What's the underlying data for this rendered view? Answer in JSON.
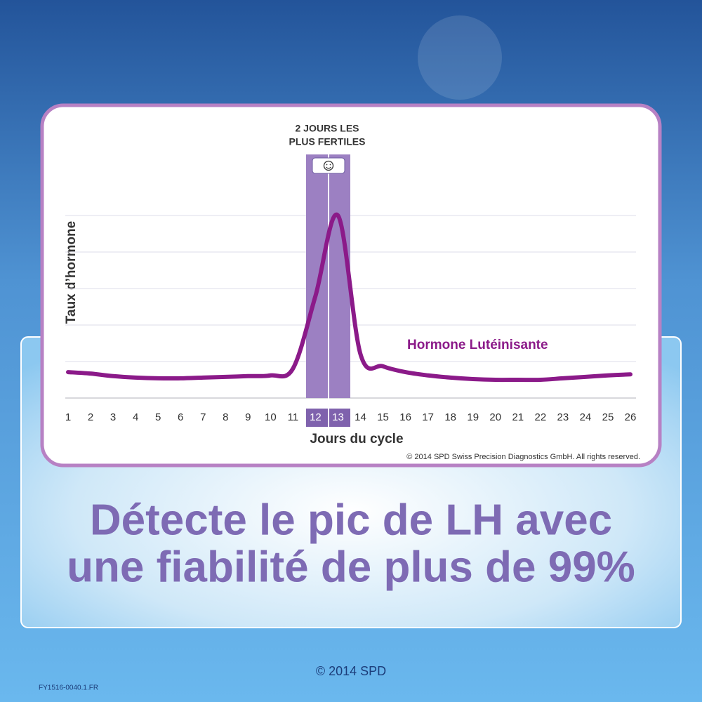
{
  "chart_data": {
    "type": "line",
    "annotation": [
      "2 JOURS LES",
      "PLUS FERTILES"
    ],
    "y_label": "Taux d’hormone",
    "x_label": "Jours du cycle",
    "copyright": "© 2014 SPD Swiss Precision Diagnostics GmbH. All rights reserved.",
    "categories": [
      "1",
      "2",
      "3",
      "4",
      "5",
      "6",
      "7",
      "8",
      "9",
      "10",
      "11",
      "12",
      "13",
      "14",
      "15",
      "16",
      "17",
      "18",
      "19",
      "20",
      "21",
      "22",
      "23",
      "24",
      "25",
      "26"
    ],
    "series": [
      {
        "name": "Hormone Lutéinisante",
        "color": "#8b1a89",
        "values": [
          0.71,
          0.67,
          0.6,
          0.56,
          0.54,
          0.54,
          0.56,
          0.58,
          0.6,
          0.62,
          0.81,
          2.8,
          5.0,
          1.2,
          0.87,
          0.71,
          0.62,
          0.56,
          0.52,
          0.5,
          0.5,
          0.5,
          0.54,
          0.58,
          0.62,
          0.65
        ]
      }
    ],
    "ylim": [
      0,
      5
    ],
    "yticks": [
      0,
      1,
      2,
      3,
      4,
      5
    ],
    "grid": true
  },
  "headline": [
    "Détecte le pic de LH avec",
    "une fiabilité de plus de 99%"
  ],
  "footer": "© 2014 SPD",
  "code": "FY1516-0040.1.FR"
}
